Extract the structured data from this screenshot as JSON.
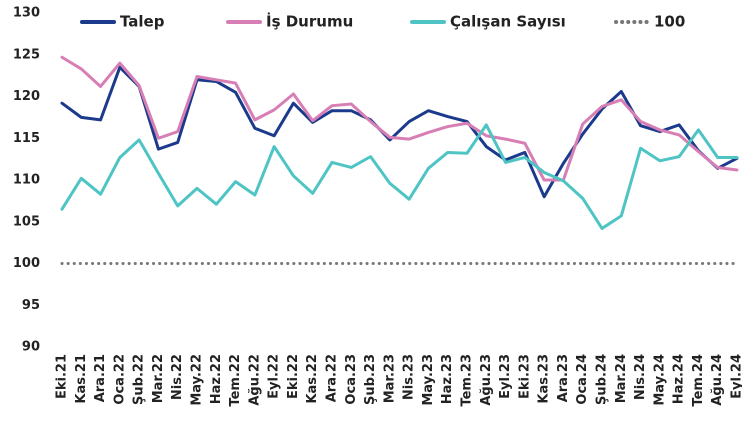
{
  "chart_data": {
    "type": "line",
    "categories": [
      "Eki.21",
      "Kas.21",
      "Ara.21",
      "Oca.22",
      "Şub.22",
      "Mar.22",
      "Nis.22",
      "May.22",
      "Haz.22",
      "Tem.22",
      "Ağu.22",
      "Eyl.22",
      "Eki.22",
      "Kas.22",
      "Ara.22",
      "Oca.23",
      "Şub.23",
      "Mar.23",
      "Nis.23",
      "May.23",
      "Haz.23",
      "Tem.23",
      "Ağu.23",
      "Eyl.23",
      "Eki.23",
      "Kas.23",
      "Ara.23",
      "Oca.24",
      "Şub.24",
      "Mar.24",
      "Nis.24",
      "May.24",
      "Haz.24",
      "Tem.24",
      "Ağu.24",
      "Eyl.24"
    ],
    "series": [
      {
        "name": "Talep",
        "color": "#1b3a8c",
        "values": [
          119.2,
          117.5,
          117.2,
          123.5,
          121.2,
          113.7,
          114.5,
          122,
          121.8,
          120.5,
          116.2,
          115.3,
          119.2,
          116.9,
          118.3,
          118.3,
          117.2,
          114.8,
          117,
          118.3,
          117.6,
          117,
          114,
          112.4,
          113.3,
          108,
          112,
          115.5,
          118.5,
          120.6,
          116.5,
          115.8,
          116.6,
          113.5,
          111.4,
          112.6
        ]
      },
      {
        "name": "İş Durumu",
        "color": "#d77fb5",
        "values": [
          124.7,
          123.3,
          121.2,
          124,
          121.3,
          115,
          115.8,
          122.4,
          122,
          121.6,
          117.2,
          118.4,
          120.3,
          117.1,
          118.9,
          119.1,
          117,
          115.1,
          114.9,
          115.7,
          116.4,
          116.8,
          115.3,
          114.9,
          114.4,
          110,
          110,
          116.7,
          118.8,
          119.6,
          117,
          116,
          115.4,
          113.4,
          111.5,
          111.2
        ]
      },
      {
        "name": "Çalışan Sayısı",
        "color": "#4fc4c4",
        "values": [
          106.5,
          110.2,
          108.3,
          112.7,
          114.8,
          110.8,
          106.9,
          109,
          107.1,
          109.8,
          108.2,
          114,
          110.5,
          108.4,
          112.1,
          111.5,
          112.8,
          109.6,
          107.7,
          111.4,
          113.3,
          113.2,
          116.6,
          112.1,
          112.7,
          110.9,
          109.9,
          107.8,
          104.2,
          105.7,
          113.8,
          112.3,
          112.8,
          116,
          112.7,
          112.7
        ]
      },
      {
        "name": "100",
        "color": "#777777",
        "dotted": true,
        "values": [
          100,
          100,
          100,
          100,
          100,
          100,
          100,
          100,
          100,
          100,
          100,
          100,
          100,
          100,
          100,
          100,
          100,
          100,
          100,
          100,
          100,
          100,
          100,
          100,
          100,
          100,
          100,
          100,
          100,
          100,
          100,
          100,
          100,
          100,
          100,
          100
        ]
      }
    ],
    "ylim": [
      90,
      130
    ],
    "yticks": [
      90,
      95,
      100,
      105,
      110,
      115,
      120,
      125,
      130
    ],
    "grid": false
  }
}
